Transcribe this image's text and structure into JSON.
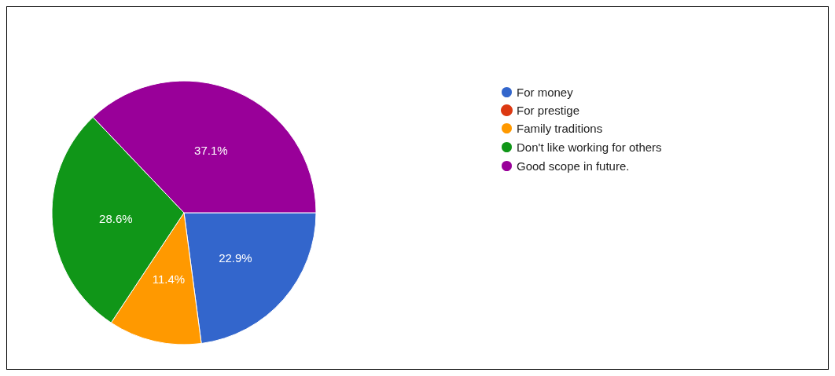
{
  "chart_data": {
    "type": "pie",
    "categories": [
      "For money",
      "For prestige",
      "Family traditions",
      "Don't like working for others",
      "Good scope in future."
    ],
    "values": [
      22.9,
      0,
      11.4,
      28.6,
      37.1
    ],
    "colors": [
      "#3366cc",
      "#dc3912",
      "#ff9900",
      "#109618",
      "#990099"
    ],
    "value_labels": [
      "22.9%",
      null,
      "11.4%",
      "28.6%",
      "37.1%"
    ],
    "legend": "right"
  }
}
